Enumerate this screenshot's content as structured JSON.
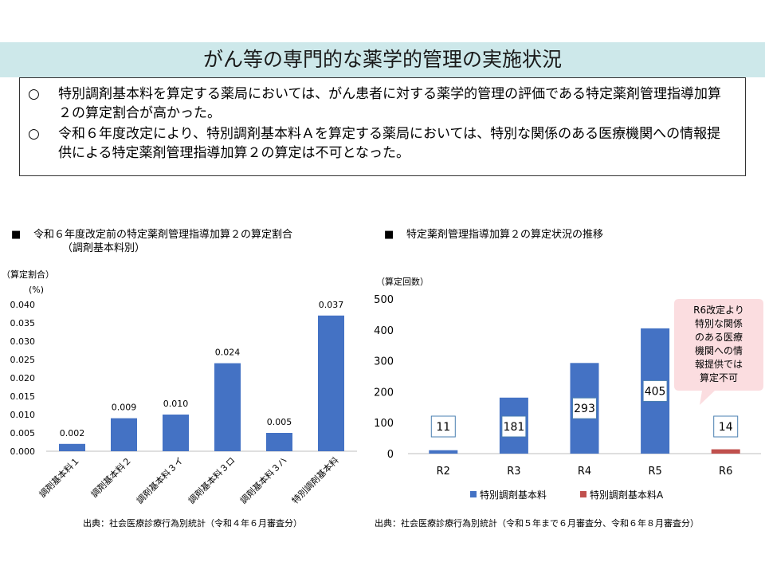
{
  "header": {
    "title": "がん等の専門的な薬学的管理の実施状況"
  },
  "summary": {
    "bullets": [
      {
        "mark": "○",
        "text": "特別調剤基本料を算定する薬局においては、がん患者に対する薬学的管理の評価である特定薬剤管理指導加算２の算定割合が高かった。"
      },
      {
        "mark": "○",
        "text": "令和６年度改定により、特別調剤基本料Ａを算定する薬局においては、特別な関係のある医療機関への情報提供による特定薬剤管理指導加算２の算定は不可となった。"
      }
    ]
  },
  "left_chart": {
    "mark": "■",
    "title_line1": "令和６年度改定前の特定薬剤管理指導加算２の算定割合",
    "title_line2": "（調剤基本料別）",
    "ylabel_line1": "（算定割合）",
    "ylabel_line2": "(%)",
    "source": "出典：社会医療診療行為別統計（令和４年６月審査分）"
  },
  "right_chart": {
    "mark": "■",
    "title": "特定薬剤管理指導加算２の算定状況の推移",
    "ylabel": "（算定回数）",
    "callout_lines": [
      "R6改定より",
      "特別な関係",
      "のある医療",
      "機関への情",
      "報提供では",
      "算定不可"
    ],
    "source": "出典：社会医療診療行為別統計（令和５年まで６月審査分、令和６年８月審査分）"
  },
  "chart_data": [
    {
      "type": "bar",
      "categories": [
        "調剤基本料１",
        "調剤基本料２",
        "調剤基本料３イ",
        "調剤基本料３ロ",
        "調剤基本料３ハ",
        "特別調剤基本料"
      ],
      "values": [
        0.002,
        0.009,
        0.01,
        0.024,
        0.005,
        0.037
      ],
      "value_labels": [
        "0.002",
        "0.009",
        "0.010",
        "0.024",
        "0.005",
        "0.037"
      ],
      "yticks": [
        "0.000",
        "0.005",
        "0.010",
        "0.015",
        "0.020",
        "0.025",
        "0.030",
        "0.035",
        "0.040"
      ],
      "ylim": [
        0,
        0.04
      ],
      "grid": false,
      "color": "#4472c4"
    },
    {
      "type": "bar",
      "categories": [
        "R2",
        "R3",
        "R4",
        "R5",
        "R6"
      ],
      "series": [
        {
          "name": "特別調剤基本料",
          "color": "#4472c4",
          "values": [
            11,
            181,
            293,
            405,
            null
          ]
        },
        {
          "name": "特別調剤基本料A",
          "color": "#c0504d",
          "values": [
            null,
            null,
            null,
            null,
            14
          ]
        }
      ],
      "value_labels": [
        "11",
        "181",
        "293",
        "405",
        "14"
      ],
      "yticks": [
        "0",
        "100",
        "200",
        "300",
        "400",
        "500"
      ],
      "ylim": [
        0,
        500
      ],
      "grid": false,
      "legend": "bottom"
    }
  ]
}
